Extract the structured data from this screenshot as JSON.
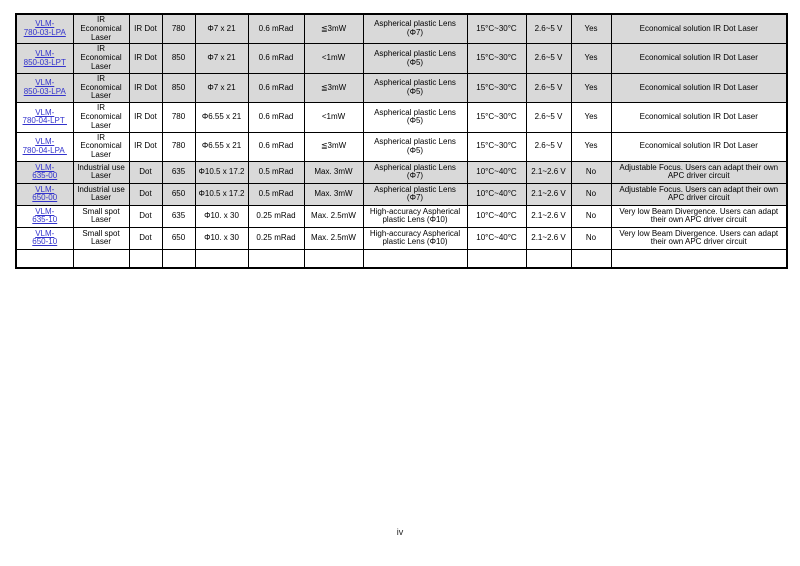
{
  "page": {
    "number_label": "iv"
  },
  "colors": {
    "row_shade": "#d9d9d9",
    "link_blue": "#3333cc",
    "border": "#000000",
    "background": "#ffffff"
  },
  "table": {
    "rows": [
      {
        "model_line1": "VLM-",
        "model_line2": "780-03-LPA",
        "category": "IR Economical Laser",
        "beam_type": "IR Dot",
        "wavelength": "780",
        "dimensions": "Φ7 x 21",
        "divergence": "0.6 mRad",
        "power": "≦3mW",
        "lens": "Aspherical plastic Lens (Φ7)",
        "temperature": "15°C~30°C",
        "voltage": "2.6~5 V",
        "apc": "Yes",
        "features": "Economical solution IR Dot Laser"
      },
      {
        "model_line1": "VLM-",
        "model_line2": "850-03-LPT",
        "category": "IR Economical Laser",
        "beam_type": "IR Dot",
        "wavelength": "850",
        "dimensions": "Φ7 x 21",
        "divergence": "0.6 mRad",
        "power": "<1mW",
        "lens": "Aspherical plastic Lens (Φ5)",
        "temperature": "15°C~30°C",
        "voltage": "2.6~5 V",
        "apc": "Yes",
        "features": "Economical solution IR Dot Laser"
      },
      {
        "model_line1": "VLM-",
        "model_line2": "850-03-LPA",
        "category": "IR Economical Laser",
        "beam_type": "IR Dot",
        "wavelength": "850",
        "dimensions": "Φ7 x 21",
        "divergence": "0.6 mRad",
        "power": "≦3mW",
        "lens": "Aspherical plastic Lens (Φ5)",
        "temperature": "15°C~30°C",
        "voltage": "2.6~5 V",
        "apc": "Yes",
        "features": "Economical solution IR Dot Laser"
      },
      {
        "model_line1": "VLM-",
        "model_line2": "780-04-LPT ",
        "category": "IR Economical Laser",
        "beam_type": "IR Dot",
        "wavelength": "780",
        "dimensions": "Φ6.55 x 21",
        "divergence": "0.6 mRad",
        "power": "<1mW",
        "lens": "Aspherical plastic Lens (Φ5)",
        "temperature": "15°C~30°C",
        "voltage": "2.6~5 V",
        "apc": "Yes",
        "features": "Economical solution IR Dot Laser"
      },
      {
        "model_line1": "VLM-",
        "model_line2": "780-04-LPA ",
        "category": "IR Economical Laser",
        "beam_type": "IR Dot",
        "wavelength": "780",
        "dimensions": "Φ6.55 x 21",
        "divergence": "0.6 mRad",
        "power": "≦3mW",
        "lens": "Aspherical plastic Lens (Φ5)",
        "temperature": "15°C~30°C",
        "voltage": "2.6~5 V",
        "apc": "Yes",
        "features": "Economical solution IR Dot Laser"
      },
      {
        "model_line1": "VLM-",
        "model_line2": "635-00",
        "category": "Industrial use Laser",
        "beam_type": "Dot",
        "wavelength": "635",
        "dimensions": "Φ10.5 x 17.2",
        "divergence": "0.5 mRad",
        "power": "Max. 3mW",
        "lens": "Aspherical plastic Lens (Φ7)",
        "temperature": "10°C~40°C",
        "voltage": "2.1~2.6 V",
        "apc": "No",
        "features": "Adjustable Focus. Users can adapt their own APC driver circuit"
      },
      {
        "model_line1": "VLM-",
        "model_line2": "650-00",
        "category": "Industrial use Laser",
        "beam_type": "Dot",
        "wavelength": "650",
        "dimensions": "Φ10.5 x 17.2",
        "divergence": "0.5 mRad",
        "power": "Max. 3mW",
        "lens": "Aspherical plastic Lens (Φ7)",
        "temperature": "10°C~40°C",
        "voltage": "2.1~2.6 V",
        "apc": "No",
        "features": "Adjustable Focus. Users can adapt their own APC driver circuit"
      },
      {
        "model_line1": "VLM-",
        "model_line2": "635-10",
        "category": "Small spot Laser",
        "beam_type": "Dot",
        "wavelength": "635",
        "dimensions": "Φ10. x 30",
        "divergence": "0.25 mRad",
        "power": "Max. 2.5mW",
        "lens": "High-accuracy Aspherical plastic Lens (Φ10)",
        "temperature": "10°C~40°C",
        "voltage": "2.1~2.6 V",
        "apc": "No",
        "features": "Very low Beam Divergence. Users can adapt their own APC driver circuit"
      },
      {
        "model_line1": "VLM-",
        "model_line2": "650-10",
        "category": "Small spot Laser",
        "beam_type": "Dot",
        "wavelength": "650",
        "dimensions": "Φ10. x 30",
        "divergence": "0.25 mRad",
        "power": "Max. 2.5mW",
        "lens": "High-accuracy Aspherical plastic Lens (Φ10)",
        "temperature": "10°C~40°C",
        "voltage": "2.1~2.6 V",
        "apc": "No",
        "features": "Very low Beam Divergence. Users can adapt their own APC driver circuit"
      }
    ]
  }
}
